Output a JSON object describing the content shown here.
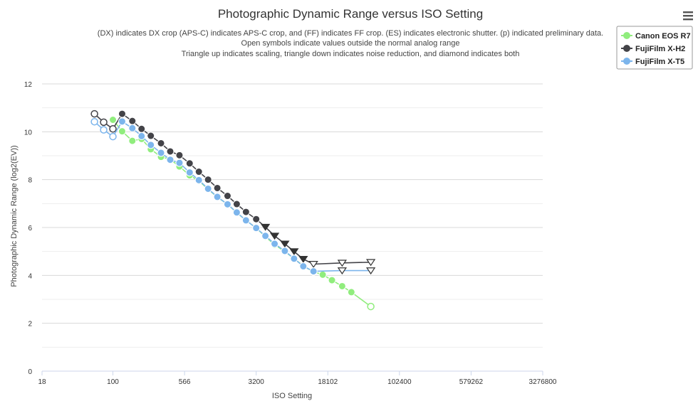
{
  "chart_data": {
    "type": "line",
    "title": "Photographic Dynamic Range versus ISO Setting",
    "subtitles": [
      "(DX) indicates DX crop (APS-C) indicates APS-C crop, and (FF) indicates FF crop. (ES) indicates electronic shutter. (p) indicated preliminary data.",
      "Open symbols indicate values outside the normal analog range",
      "Triangle up indicates scaling, triangle down indicates noise reduction, and diamond indicates both"
    ],
    "xlabel": "ISO Setting",
    "ylabel": "Photographic Dynamic Range (log2(EV))",
    "x_scale": "log",
    "xlim": [
      18,
      3276800
    ],
    "ylim": [
      0,
      12
    ],
    "x_ticks": [
      "18",
      "100",
      "566",
      "3200",
      "18102",
      "102400",
      "579262",
      "3276800"
    ],
    "y_ticks": [
      "0",
      "2",
      "4",
      "6",
      "8",
      "10",
      "12"
    ],
    "legend_position": "top-right",
    "series": [
      {
        "name": "Canon EOS R7",
        "color": "#90ed7d",
        "points": [
          {
            "x": 100,
            "y": 10.5,
            "m": "circle"
          },
          {
            "x": 125,
            "y": 10.02,
            "m": "circle"
          },
          {
            "x": 160,
            "y": 9.62,
            "m": "circle"
          },
          {
            "x": 200,
            "y": 9.7,
            "m": "circle"
          },
          {
            "x": 250,
            "y": 9.27,
            "m": "circle"
          },
          {
            "x": 320,
            "y": 8.95,
            "m": "circle"
          },
          {
            "x": 400,
            "y": 8.85,
            "m": "circle"
          },
          {
            "x": 500,
            "y": 8.55,
            "m": "circle"
          },
          {
            "x": 640,
            "y": 8.18,
            "m": "circle"
          },
          {
            "x": 800,
            "y": 7.95,
            "m": "circle"
          },
          {
            "x": 1000,
            "y": 7.6,
            "m": "circle"
          },
          {
            "x": 1250,
            "y": 7.27,
            "m": "circle"
          },
          {
            "x": 1600,
            "y": 6.97,
            "m": "circle"
          },
          {
            "x": 2000,
            "y": 6.62,
            "m": "circle"
          },
          {
            "x": 2500,
            "y": 6.3,
            "m": "circle"
          },
          {
            "x": 3200,
            "y": 5.98,
            "m": "circle"
          },
          {
            "x": 4000,
            "y": 5.62,
            "m": "circle"
          },
          {
            "x": 5000,
            "y": 5.28,
            "m": "circle"
          },
          {
            "x": 6400,
            "y": 5.0,
            "m": "circle"
          },
          {
            "x": 8000,
            "y": 4.7,
            "m": "circle"
          },
          {
            "x": 10000,
            "y": 4.4,
            "m": "circle"
          },
          {
            "x": 12800,
            "y": 4.15,
            "m": "circle"
          },
          {
            "x": 16000,
            "y": 4.03,
            "m": "circle"
          },
          {
            "x": 20000,
            "y": 3.8,
            "m": "circle"
          },
          {
            "x": 25600,
            "y": 3.55,
            "m": "circle"
          },
          {
            "x": 32000,
            "y": 3.3,
            "m": "circle"
          },
          {
            "x": 51200,
            "y": 2.7,
            "m": "circle-open"
          }
        ]
      },
      {
        "name": "FujiFilm X-H2",
        "color": "#434348",
        "points": [
          {
            "x": 64,
            "y": 10.75,
            "m": "circle-open"
          },
          {
            "x": 80,
            "y": 10.4,
            "m": "circle-open"
          },
          {
            "x": 100,
            "y": 10.12,
            "m": "circle-open"
          },
          {
            "x": 125,
            "y": 10.75,
            "m": "circle"
          },
          {
            "x": 160,
            "y": 10.45,
            "m": "circle"
          },
          {
            "x": 200,
            "y": 10.12,
            "m": "circle"
          },
          {
            "x": 250,
            "y": 9.83,
            "m": "circle"
          },
          {
            "x": 320,
            "y": 9.52,
            "m": "circle"
          },
          {
            "x": 400,
            "y": 9.18,
            "m": "circle"
          },
          {
            "x": 500,
            "y": 9.02,
            "m": "circle"
          },
          {
            "x": 640,
            "y": 8.68,
            "m": "circle"
          },
          {
            "x": 800,
            "y": 8.33,
            "m": "circle"
          },
          {
            "x": 1000,
            "y": 8.0,
            "m": "circle"
          },
          {
            "x": 1250,
            "y": 7.65,
            "m": "circle"
          },
          {
            "x": 1600,
            "y": 7.32,
            "m": "circle"
          },
          {
            "x": 2000,
            "y": 6.98,
            "m": "circle"
          },
          {
            "x": 2500,
            "y": 6.65,
            "m": "circle"
          },
          {
            "x": 3200,
            "y": 6.35,
            "m": "circle"
          },
          {
            "x": 4000,
            "y": 6.02,
            "m": "triangle-down"
          },
          {
            "x": 5000,
            "y": 5.65,
            "m": "triangle-down"
          },
          {
            "x": 6400,
            "y": 5.32,
            "m": "triangle-down"
          },
          {
            "x": 8000,
            "y": 5.0,
            "m": "triangle-down"
          },
          {
            "x": 10000,
            "y": 4.68,
            "m": "triangle-down"
          },
          {
            "x": 12800,
            "y": 4.47,
            "m": "triangle-down-open"
          },
          {
            "x": 25600,
            "y": 4.52,
            "m": "triangle-down-open"
          },
          {
            "x": 51200,
            "y": 4.55,
            "m": "triangle-down-open"
          }
        ]
      },
      {
        "name": "FujiFilm X-T5",
        "color": "#7cb5ec",
        "points": [
          {
            "x": 64,
            "y": 10.42,
            "m": "circle-open"
          },
          {
            "x": 80,
            "y": 10.08,
            "m": "circle-open"
          },
          {
            "x": 100,
            "y": 9.8,
            "m": "circle-open"
          },
          {
            "x": 125,
            "y": 10.43,
            "m": "circle"
          },
          {
            "x": 160,
            "y": 10.15,
            "m": "circle"
          },
          {
            "x": 200,
            "y": 9.82,
            "m": "circle"
          },
          {
            "x": 250,
            "y": 9.45,
            "m": "circle"
          },
          {
            "x": 320,
            "y": 9.12,
            "m": "circle"
          },
          {
            "x": 400,
            "y": 8.83,
            "m": "circle"
          },
          {
            "x": 500,
            "y": 8.7,
            "m": "circle"
          },
          {
            "x": 640,
            "y": 8.3,
            "m": "circle"
          },
          {
            "x": 800,
            "y": 7.98,
            "m": "circle"
          },
          {
            "x": 1000,
            "y": 7.62,
            "m": "circle"
          },
          {
            "x": 1250,
            "y": 7.28,
            "m": "circle"
          },
          {
            "x": 1600,
            "y": 6.97,
            "m": "circle"
          },
          {
            "x": 2000,
            "y": 6.63,
            "m": "circle"
          },
          {
            "x": 2500,
            "y": 6.3,
            "m": "circle"
          },
          {
            "x": 3200,
            "y": 5.98,
            "m": "circle"
          },
          {
            "x": 4000,
            "y": 5.65,
            "m": "circle"
          },
          {
            "x": 5000,
            "y": 5.32,
            "m": "circle"
          },
          {
            "x": 6400,
            "y": 5.02,
            "m": "circle"
          },
          {
            "x": 8000,
            "y": 4.7,
            "m": "circle"
          },
          {
            "x": 10000,
            "y": 4.38,
            "m": "circle"
          },
          {
            "x": 12800,
            "y": 4.17,
            "m": "circle"
          },
          {
            "x": 25600,
            "y": 4.2,
            "m": "triangle-down-open"
          },
          {
            "x": 51200,
            "y": 4.2,
            "m": "triangle-down-open"
          }
        ]
      }
    ]
  }
}
